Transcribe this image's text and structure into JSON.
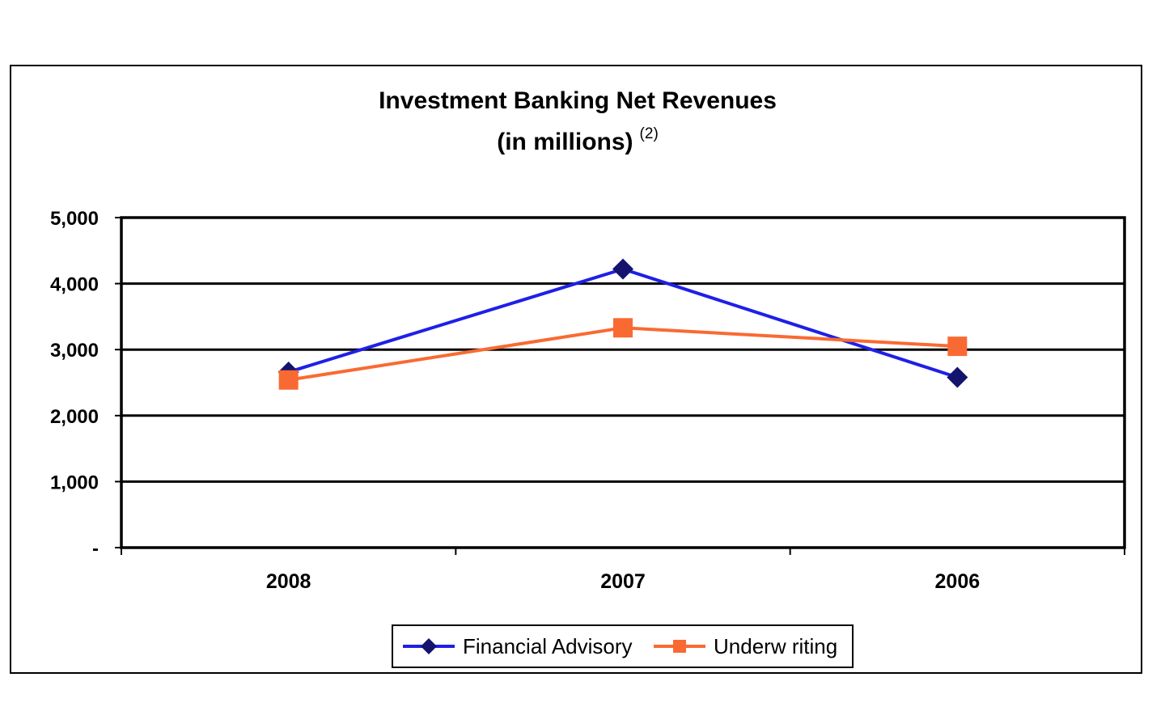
{
  "chart_data": {
    "type": "line",
    "title": "Investment Banking Net Revenues",
    "subtitle": "(in millions)",
    "subtitle_note": "(2)",
    "categories": [
      "2008",
      "2007",
      "2006"
    ],
    "y_tick_labels": [
      "-",
      "1,000",
      "2,000",
      "3,000",
      "4,000",
      "5,000"
    ],
    "ylim": [
      0,
      5000
    ],
    "y_ticks": [
      0,
      1000,
      2000,
      3000,
      4000,
      5000
    ],
    "grid": true,
    "legend_position": "bottom",
    "series": [
      {
        "name": "Financial Advisory",
        "values": [
          2660,
          4220,
          2580
        ],
        "color": "#1f1fe8",
        "marker_color": "#14146e",
        "marker": "diamond"
      },
      {
        "name": "Underw riting",
        "values": [
          2540,
          3330,
          3050
        ],
        "color": "#f96a32",
        "marker_color": "#f96a32",
        "marker": "square"
      }
    ]
  }
}
